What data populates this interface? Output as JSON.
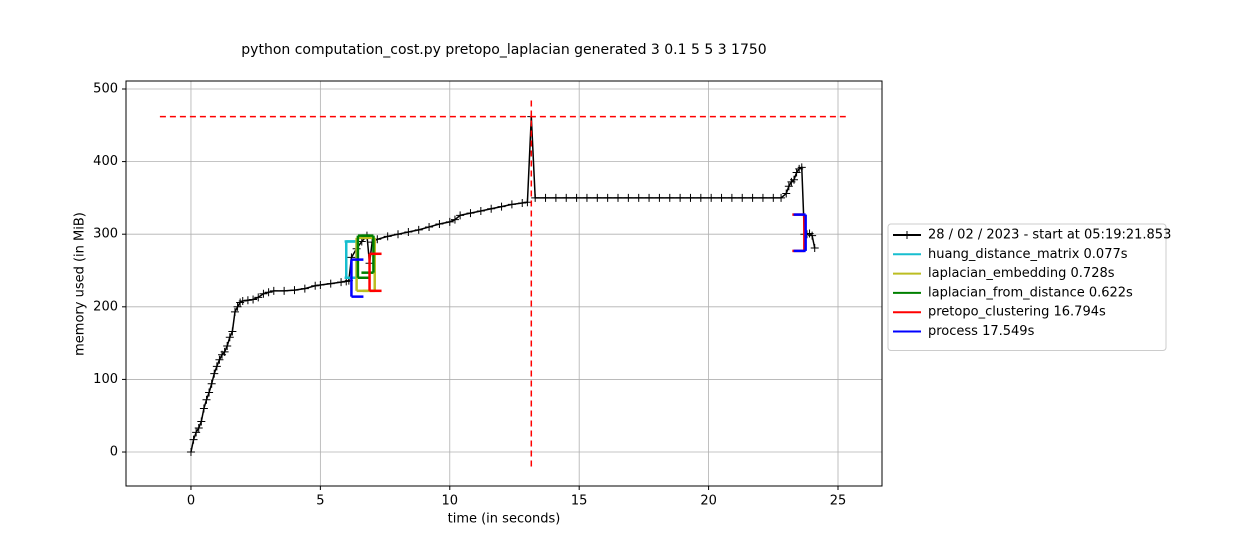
{
  "chart_data": {
    "type": "line",
    "title": "python computation_cost.py pretopo_laplacian generated 3 0.1 5 5 3 1750",
    "x_label": "time (in seconds)",
    "y_label": "memory used (in MiB)",
    "x": [
      0,
      0.1,
      0.2,
      0.3,
      0.4,
      0.5,
      0.6,
      0.7,
      0.8,
      0.9,
      1.0,
      1.1,
      1.2,
      1.3,
      1.4,
      1.5,
      1.6,
      1.7,
      1.8,
      1.9,
      2.0,
      2.2,
      2.4,
      2.6,
      2.8,
      3.0,
      3.2,
      3.6,
      4.0,
      4.4,
      4.8,
      5.0,
      5.4,
      5.8,
      6.0,
      6.1,
      6.2,
      6.4,
      6.6,
      6.8,
      6.9,
      7.0,
      7.2,
      7.6,
      8.0,
      8.4,
      8.8,
      9.2,
      9.6,
      10.0,
      10.2,
      10.4,
      10.8,
      11.2,
      11.6,
      12.0,
      12.4,
      12.8,
      13.0,
      13.15,
      13.3,
      13.7,
      14.1,
      14.5,
      14.9,
      15.3,
      15.7,
      16.1,
      16.5,
      16.9,
      17.3,
      17.7,
      18.1,
      18.5,
      18.9,
      19.3,
      19.7,
      20.1,
      20.5,
      20.9,
      21.3,
      21.7,
      22.1,
      22.5,
      22.8,
      23.0,
      23.1,
      23.2,
      23.3,
      23.4,
      23.5,
      23.6,
      23.7,
      23.8,
      23.9,
      24.0,
      24.1
    ],
    "series": [
      {
        "name": "28 / 02 / 2023 - start at 05:19:21.853",
        "color": "#000000",
        "values": [
          0,
          17,
          27,
          33,
          42,
          60,
          72,
          82,
          94,
          108,
          118,
          127,
          134,
          138,
          146,
          158,
          166,
          193,
          200,
          206,
          208,
          209,
          210,
          213,
          218,
          220,
          222,
          222,
          223,
          225,
          229,
          230,
          232,
          234,
          235,
          236,
          268,
          280,
          290,
          298,
          260,
          289,
          293,
          297,
          300,
          303,
          306,
          310,
          314,
          317,
          320,
          326,
          329,
          332,
          335,
          338,
          341,
          343,
          344,
          462,
          350,
          350,
          350,
          350,
          350,
          350,
          350,
          350,
          350,
          350,
          350,
          350,
          350,
          350,
          350,
          350,
          350,
          350,
          350,
          350,
          350,
          350,
          350,
          350,
          350,
          356,
          366,
          372,
          375,
          385,
          390,
          392,
          300,
          300,
          301,
          298,
          281
        ]
      }
    ],
    "functions": [
      {
        "name": "huang_distance_matrix 0.077s",
        "color": "#17becf",
        "start_x": 6.0,
        "start_y": [
          240,
          290
        ],
        "end_x": 6.4,
        "end_y": [
          240,
          290
        ]
      },
      {
        "name": "laplacian_embedding 0.728s",
        "color": "#bcbd22",
        "start_x": 6.4,
        "start_y": [
          222,
          295
        ],
        "end_x": 7.1,
        "end_y": [
          222,
          295
        ]
      },
      {
        "name": "laplacian_from_distance 0.622s",
        "color": "#008000",
        "start_x": 6.45,
        "start_y": [
          240,
          298
        ],
        "end_x": 7.05,
        "end_y": [
          247,
          298
        ]
      },
      {
        "name": "pretopo_clustering 16.794s",
        "color": "#ff0000",
        "start_x": 6.9,
        "start_y": [
          222,
          273
        ],
        "end_x": 23.7,
        "end_y": [
          277,
          327
        ]
      },
      {
        "name": "process 17.549s",
        "color": "#0000ff",
        "start_x": 6.2,
        "start_y": [
          214,
          265
        ],
        "end_x": 23.75,
        "end_y": [
          277,
          327
        ]
      }
    ],
    "max_marker": {
      "color": "#ff0000",
      "x": 13.15,
      "y": 462,
      "xspan": [
        -1.2,
        25.3
      ],
      "yspan": [
        -20,
        485
      ]
    },
    "xlim": [
      -2.51,
      26.7
    ],
    "ylim": [
      -46.8,
      511
    ],
    "xticks": [
      0,
      5,
      10,
      15,
      20,
      25
    ],
    "yticks": [
      0,
      100,
      200,
      300,
      400,
      500
    ],
    "grid": true,
    "legend": "outside-right"
  }
}
